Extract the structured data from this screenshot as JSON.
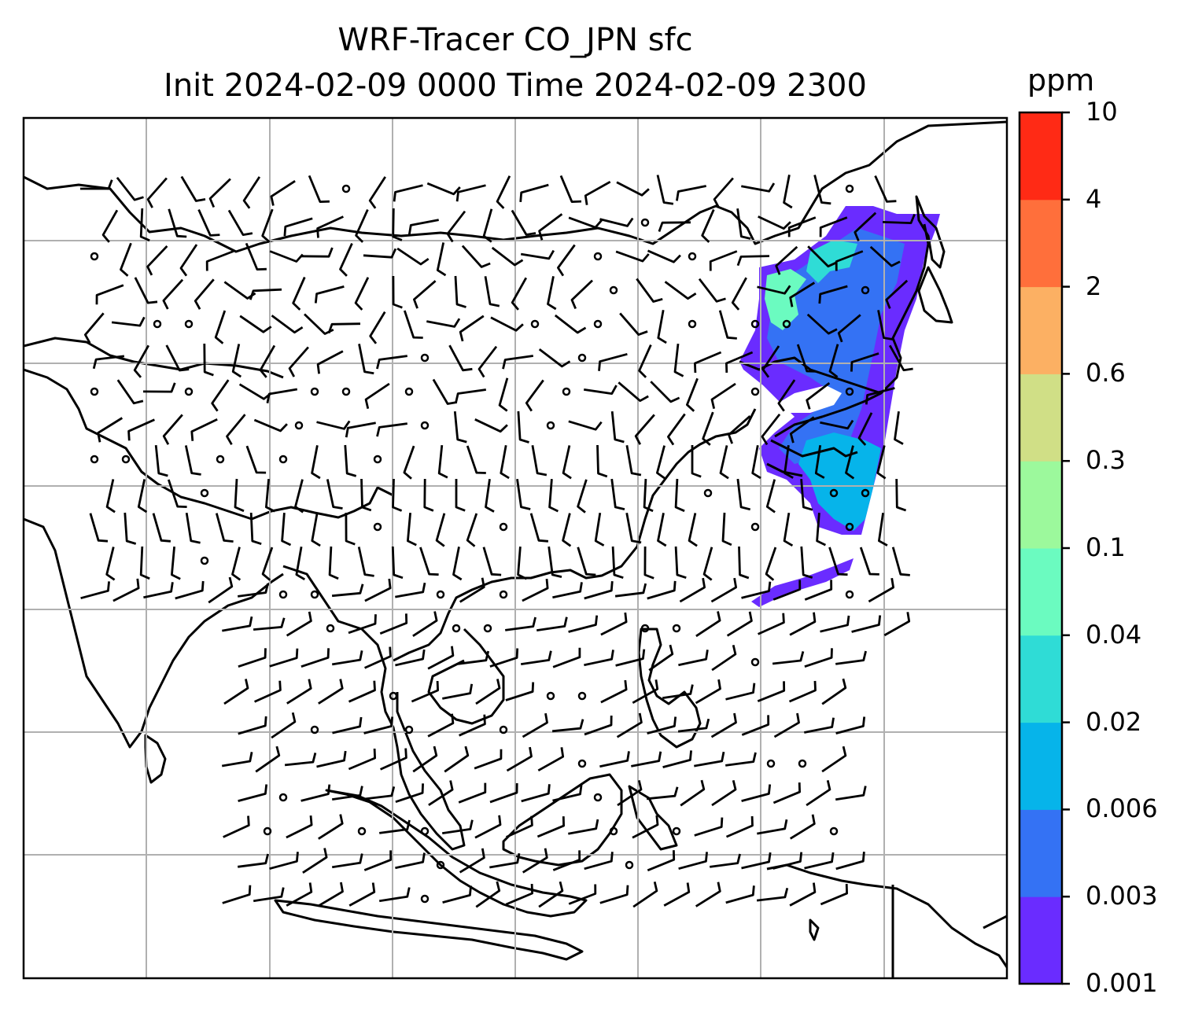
{
  "figure": {
    "title_line1": "WRF-Tracer CO_JPN sfc",
    "title_line2": "Init 2024-02-09 0000 Time 2024-02-09 2300"
  },
  "colorbar": {
    "unit": "ppm",
    "levels": [
      "0.001",
      "0.003",
      "0.006",
      "0.02",
      "0.04",
      "0.1",
      "0.3",
      "0.6",
      "2",
      "4",
      "10"
    ],
    "colors": [
      "#6a2cff",
      "#3472f4",
      "#06b4ea",
      "#2fdcd6",
      "#6bfbc0",
      "#9cf99c",
      "#d0df86",
      "#fcb063",
      "#ff6f3b",
      "#ff2a15"
    ]
  },
  "map": {
    "gridline_color": "#b0b0b0",
    "coastline_color": "#000000",
    "plume_colors": {
      "outer": "#6a2cff",
      "mid": "#3472f4",
      "core": "#06b4ea",
      "high": "#6bfbc0"
    }
  }
}
